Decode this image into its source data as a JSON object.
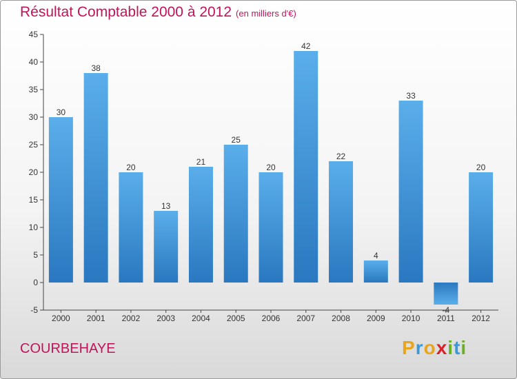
{
  "chart_data": {
    "type": "bar",
    "title": "Résultat Comptable 2000 à 2012",
    "subtitle": "(en milliers d'€)",
    "categories": [
      "2000",
      "2001",
      "2002",
      "2003",
      "2004",
      "2005",
      "2006",
      "2007",
      "2008",
      "2009",
      "2010",
      "2011",
      "2012"
    ],
    "values": [
      30,
      38,
      20,
      13,
      21,
      25,
      20,
      42,
      22,
      4,
      33,
      -4,
      20
    ],
    "xlabel": "",
    "ylabel": "",
    "ylim": [
      -5,
      45
    ],
    "yticks": [
      -5,
      0,
      5,
      10,
      15,
      20,
      25,
      30,
      35,
      40,
      45
    ],
    "grid": false,
    "bar_color": "#3d8fd6",
    "bar_color_light": "#5aaeea",
    "bar_color_dark": "#2a78c0"
  },
  "footer": {
    "commune": "COURBEHAYE",
    "brand_letters": [
      {
        "char": "P",
        "color": "#e8a51c"
      },
      {
        "char": "r",
        "color": "#3a9ad9"
      },
      {
        "char": "o",
        "color": "#e8a51c"
      },
      {
        "char": "x",
        "color": "#d8232a"
      },
      {
        "char": "i",
        "color": "#6ab023"
      },
      {
        "char": "t",
        "color": "#3a9ad9"
      },
      {
        "char": "i",
        "color": "#6ab023"
      }
    ]
  }
}
